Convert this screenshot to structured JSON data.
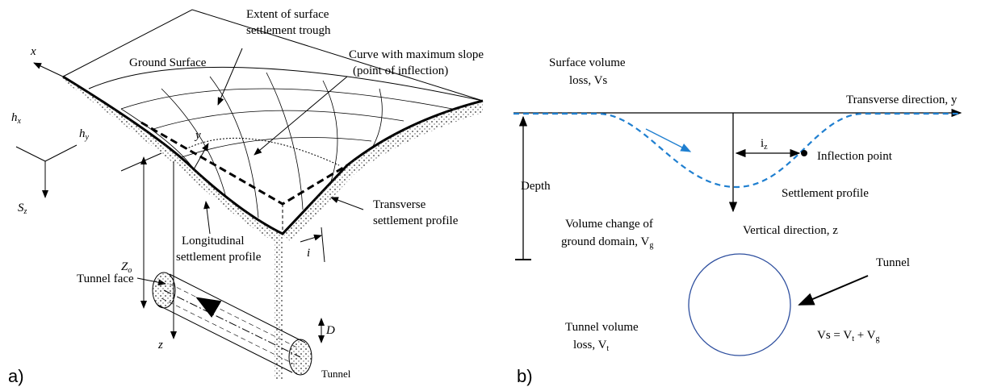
{
  "panel_a": {
    "label": "a)",
    "axis_x": "x",
    "axis_y": "y",
    "axis_z": "z",
    "ground_surface": "Ground Surface",
    "extent": [
      "Extent of surface",
      "settlement trough"
    ],
    "curve": [
      "Curve with maximum slope",
      "(point of inflection)"
    ],
    "hx": {
      "text": "h",
      "sub": "x"
    },
    "hy": {
      "text": "h",
      "sub": "y"
    },
    "sz": {
      "text": "S",
      "sub": "z"
    },
    "z0": {
      "text": "Z",
      "sub": "o"
    },
    "transverse": [
      "Transverse",
      "settlement profile"
    ],
    "longitudinal": [
      "Longitudinal",
      "settlement profile"
    ],
    "i": "i",
    "tunnel_face": "Tunnel face",
    "d": "D",
    "tunnel": "Tunnel"
  },
  "panel_b": {
    "label": "b)",
    "surface_loss": [
      "Surface volume",
      "loss, Vs"
    ],
    "transverse": "Transverse direction, y",
    "iz": {
      "text": "i",
      "sub": "z"
    },
    "inflection": "Inflection point",
    "depth": "Depth",
    "settlement": "Settlement profile",
    "volume_change": [
      "Volume change of",
      {
        "text": "ground domain, V",
        "sub": "g"
      }
    ],
    "vertical": "Vertical direction, z",
    "tunnel": "Tunnel",
    "tunnel_loss": [
      "Tunnel volume",
      {
        "text": "loss, V",
        "sub": "t"
      }
    ],
    "equation": [
      {
        "text": "Vs = V",
        "sub": "t"
      },
      {
        "text": " + V",
        "sub": "g"
      }
    ]
  }
}
